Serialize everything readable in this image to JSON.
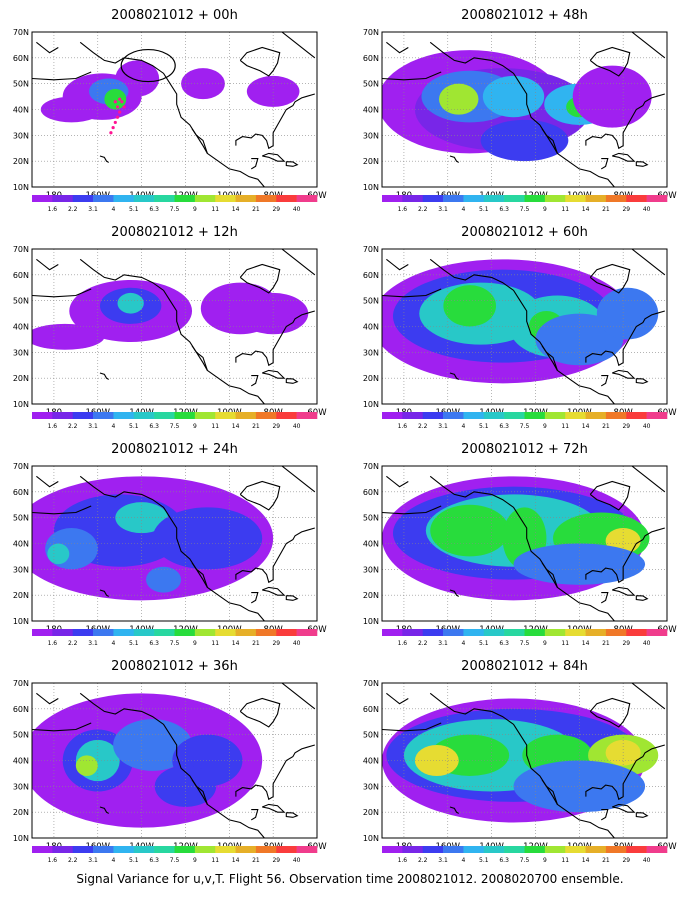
{
  "colorbar": {
    "labels": [
      "1.6",
      "2.2",
      "3.1",
      "4",
      "5.1",
      "6.3",
      "7.5",
      "9",
      "11",
      "14",
      "21",
      "29",
      "40"
    ],
    "colors": [
      "#a020f0",
      "#7826e8",
      "#3c3cf0",
      "#3c78f0",
      "#30b4f0",
      "#28c8c8",
      "#28d7a0",
      "#28dc3c",
      "#a0e632",
      "#e6dc32",
      "#e6af28",
      "#f07828",
      "#fa3c3c",
      "#f03c8c"
    ]
  },
  "axes": {
    "lon_labels": [
      "180",
      "160W",
      "140W",
      "120W",
      "100W",
      "80W",
      "60W"
    ],
    "lat_labels": [
      "10N",
      "20N",
      "30N",
      "40N",
      "50N",
      "60N",
      "70N"
    ]
  },
  "panels": [
    {
      "title": "2008021012 + 00h"
    },
    {
      "title": "2008021012 + 48h"
    },
    {
      "title": "2008021012 + 12h"
    },
    {
      "title": "2008021012 + 60h"
    },
    {
      "title": "2008021012 + 24h"
    },
    {
      "title": "2008021012 + 72h"
    },
    {
      "title": "2008021012 + 36h"
    },
    {
      "title": "2008021012 + 84h"
    }
  ],
  "footer": "Signal Variance for u,v,T. Flight 56. Observation time 2008021012. 2008020700 ensemble."
}
